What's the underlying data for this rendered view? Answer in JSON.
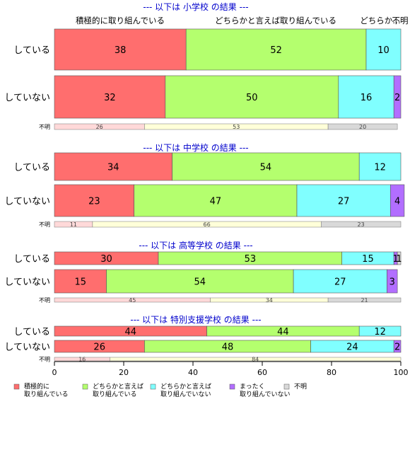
{
  "chart_data": {
    "type": "bar",
    "orientation": "horizontal",
    "stacked": true,
    "xlim": [
      0,
      100
    ],
    "x_ticks": [
      "0",
      "20",
      "40",
      "60",
      "80",
      "100"
    ],
    "column_headers": [
      "積極的に取り組んでいる",
      "どちらかと言えば取り組んでいる",
      "どちらか…",
      "不明"
    ],
    "legend": {
      "placement": "bottom",
      "entries": [
        {
          "line1": "積極的に",
          "line2": "取り組んでいる",
          "color": "#ff6e6e"
        },
        {
          "line1": "どちらかと言えば",
          "line2": "取り組んでいる",
          "color": "#b4ff6e"
        },
        {
          "line1": "どちらかと言えば",
          "line2": "取り組んでいない",
          "color": "#80ffff"
        },
        {
          "line1": "まったく",
          "line2": "取り組んでいない",
          "color": "#b26eff"
        },
        {
          "line1": "不明",
          "line2": "",
          "color": "#d9d9d9"
        }
      ]
    },
    "groups": [
      {
        "title": "--- 以下は 小学校 の結果 ---",
        "rows": [
          {
            "label": "している",
            "values": [
              38,
              52,
              10,
              0,
              0
            ],
            "labels": [
              "38",
              "52",
              "10",
              "",
              ""
            ]
          },
          {
            "label": "していない",
            "values": [
              32,
              50,
              16,
              2,
              0
            ],
            "labels": [
              "32",
              "50",
              "16",
              "2",
              ""
            ]
          }
        ],
        "unknown": {
          "label": "不明",
          "values": [
            26,
            53,
            20
          ],
          "labels": [
            "26",
            "53",
            "20"
          ]
        }
      },
      {
        "title": "--- 以下は 中学校 の結果 ---",
        "rows": [
          {
            "label": "している",
            "values": [
              34,
              54,
              12,
              0,
              0
            ],
            "labels": [
              "34",
              "54",
              "12",
              "",
              ""
            ]
          },
          {
            "label": "していない",
            "values": [
              23,
              47,
              27,
              4,
              0
            ],
            "labels": [
              "23",
              "47",
              "27",
              "4",
              ""
            ]
          }
        ],
        "unknown": {
          "label": "不明",
          "values": [
            11,
            66,
            23
          ],
          "labels": [
            "11",
            "66",
            "23"
          ]
        }
      },
      {
        "title": "--- 以下は 高等学校 の結果 ---",
        "rows": [
          {
            "label": "している",
            "values": [
              30,
              53,
              15,
              1,
              1
            ],
            "labels": [
              "30",
              "53",
              "15",
              "1",
              "1"
            ]
          },
          {
            "label": "していない",
            "values": [
              15,
              54,
              27,
              3,
              0
            ],
            "labels": [
              "15",
              "54",
              "27",
              "3",
              ""
            ]
          }
        ],
        "unknown": {
          "label": "不明",
          "values": [
            45,
            34,
            21
          ],
          "labels": [
            "45",
            "34",
            "21"
          ]
        }
      },
      {
        "title": "--- 以下は 特別支援学校 の結果 ---",
        "rows": [
          {
            "label": "している",
            "values": [
              44,
              44,
              12,
              0,
              0
            ],
            "labels": [
              "44",
              "44",
              "12",
              "",
              ""
            ]
          },
          {
            "label": "していない",
            "values": [
              26,
              48,
              24,
              2,
              0
            ],
            "labels": [
              "26",
              "48",
              "24",
              "2",
              ""
            ]
          }
        ],
        "unknown": {
          "label": "不明",
          "values": [
            16,
            84,
            0
          ],
          "labels": [
            "16",
            "84",
            ""
          ]
        }
      }
    ]
  }
}
